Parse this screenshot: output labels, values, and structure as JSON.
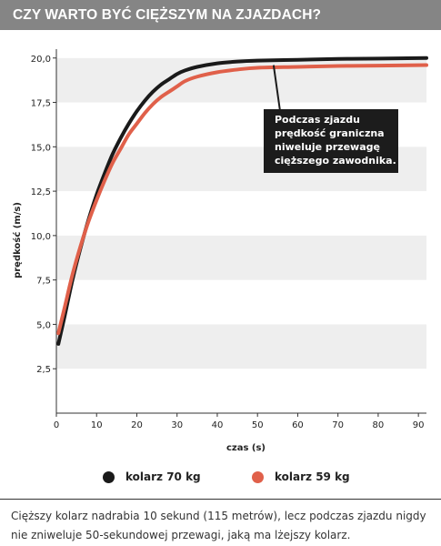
{
  "header": {
    "title": "CZY WARTO BYĆ CIĘŻSZYM NA ZJAZDACH?"
  },
  "caption": "Cięższy kolarz nadrabia 10 sekund (115 metrów), lecz podczas zjazdu nigdy nie zniweluje 50-sekundowej przewagi, jaką ma lżejszy kolarz.",
  "colors": {
    "series_heavy": "#1a1a1a",
    "series_light": "#e0604a",
    "stripe": "#eeeeee",
    "callout_bg": "#1c1c1c"
  },
  "chart_data": {
    "type": "line",
    "xlabel": "czas (s)",
    "ylabel": "prędkość (m/s)",
    "xlim": [
      0,
      92
    ],
    "ylim": [
      0,
      20.5
    ],
    "x_ticks": [
      0,
      10,
      20,
      30,
      40,
      50,
      60,
      70,
      80,
      90
    ],
    "x_tick_labels": [
      "0",
      "10",
      "20",
      "30",
      "40",
      "50",
      "60",
      "70",
      "80",
      "90"
    ],
    "y_ticks": [
      2.5,
      5.0,
      7.5,
      10.0,
      12.5,
      15.0,
      17.5,
      20.0
    ],
    "y_tick_labels": [
      "2,5",
      "5,0",
      "7,5",
      "10,0",
      "12,5",
      "15,0",
      "17,5",
      "20,0"
    ],
    "grid": "horizontal stripes",
    "legend_position": "bottom",
    "series": [
      {
        "name": "kolarz 70 kg",
        "color": "#1a1a1a",
        "points": [
          [
            0.5,
            3.9
          ],
          [
            2,
            5.4
          ],
          [
            4,
            7.5
          ],
          [
            6,
            9.3
          ],
          [
            8,
            10.9
          ],
          [
            10,
            12.3
          ],
          [
            12,
            13.5
          ],
          [
            14,
            14.6
          ],
          [
            16,
            15.5
          ],
          [
            18,
            16.3
          ],
          [
            20,
            17.0
          ],
          [
            22,
            17.6
          ],
          [
            24,
            18.1
          ],
          [
            26,
            18.5
          ],
          [
            28,
            18.8
          ],
          [
            30,
            19.1
          ],
          [
            32,
            19.3
          ],
          [
            35,
            19.5
          ],
          [
            40,
            19.7
          ],
          [
            45,
            19.8
          ],
          [
            50,
            19.85
          ],
          [
            60,
            19.9
          ],
          [
            70,
            19.95
          ],
          [
            80,
            19.97
          ],
          [
            92,
            20.0
          ]
        ]
      },
      {
        "name": "kolarz 59 kg",
        "color": "#e0604a",
        "points": [
          [
            0.5,
            4.5
          ],
          [
            2,
            5.9
          ],
          [
            4,
            7.8
          ],
          [
            6,
            9.4
          ],
          [
            8,
            10.8
          ],
          [
            10,
            12.0
          ],
          [
            12,
            13.1
          ],
          [
            14,
            14.1
          ],
          [
            16,
            14.9
          ],
          [
            18,
            15.7
          ],
          [
            20,
            16.3
          ],
          [
            22,
            16.9
          ],
          [
            24,
            17.4
          ],
          [
            26,
            17.8
          ],
          [
            28,
            18.1
          ],
          [
            30,
            18.4
          ],
          [
            32,
            18.7
          ],
          [
            35,
            18.95
          ],
          [
            40,
            19.2
          ],
          [
            45,
            19.35
          ],
          [
            50,
            19.45
          ],
          [
            60,
            19.5
          ],
          [
            70,
            19.55
          ],
          [
            80,
            19.57
          ],
          [
            92,
            19.6
          ]
        ]
      }
    ],
    "annotation": {
      "lines": [
        "Podczas zjazdu",
        "prędkość graniczna",
        "niweluje przewagę",
        "cięższego zawodnika."
      ],
      "pointer_to": [
        54,
        19.6
      ]
    }
  }
}
